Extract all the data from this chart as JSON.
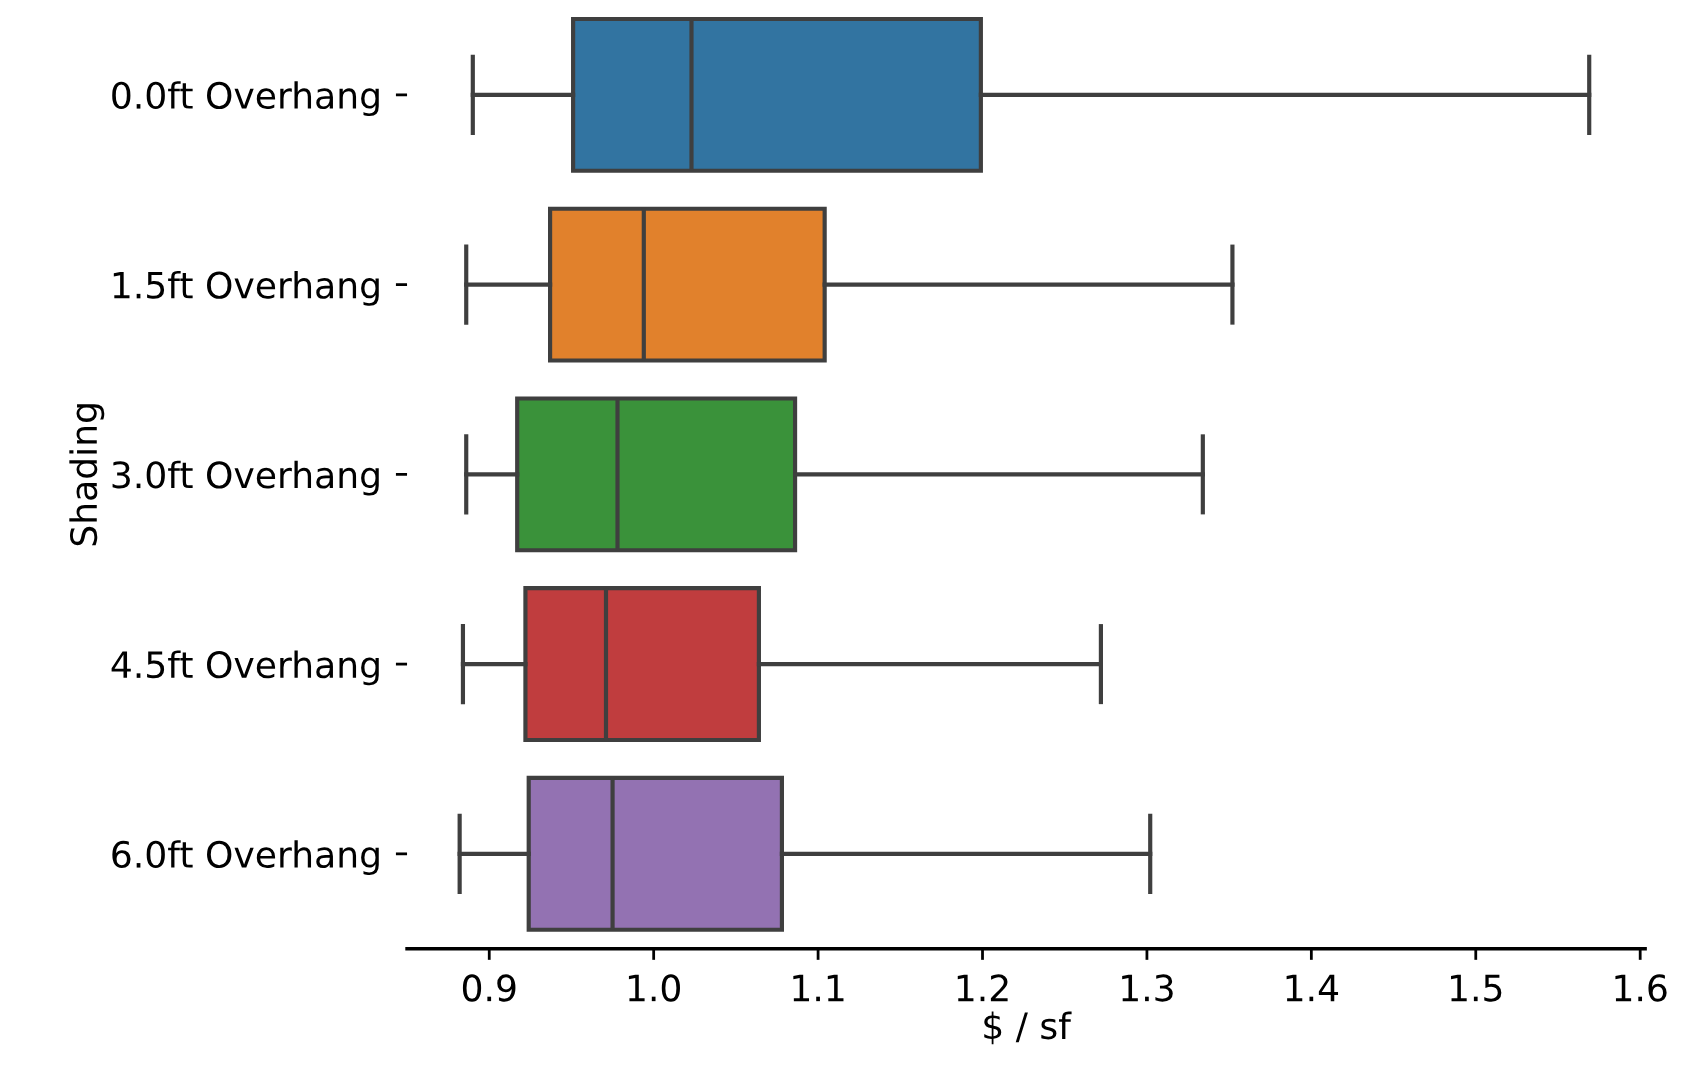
{
  "chart_data": {
    "type": "box",
    "orientation": "horizontal",
    "xlabel": "$ / sf",
    "ylabel": "Shading",
    "categories": [
      "0.0ft Overhang",
      "1.5ft Overhang",
      "3.0ft Overhang",
      "4.5ft Overhang",
      "6.0ft Overhang"
    ],
    "colors": [
      "#3274a1",
      "#e1812c",
      "#3a923a",
      "#c03d3e",
      "#9372b2"
    ],
    "boxes": [
      {
        "low": 0.89,
        "q1": 0.951,
        "median": 1.023,
        "q3": 1.199,
        "high": 1.569
      },
      {
        "low": 0.886,
        "q1": 0.937,
        "median": 0.994,
        "q3": 1.104,
        "high": 1.352
      },
      {
        "low": 0.886,
        "q1": 0.917,
        "median": 0.978,
        "q3": 1.086,
        "high": 1.334
      },
      {
        "low": 0.884,
        "q1": 0.922,
        "median": 0.971,
        "q3": 1.064,
        "high": 1.272
      },
      {
        "low": 0.882,
        "q1": 0.924,
        "median": 0.975,
        "q3": 1.078,
        "high": 1.302
      }
    ],
    "xlim": [
      0.85,
      1.603
    ],
    "xticks": [
      0.9,
      {
        "value": 1.0,
        "label": "1.0"
      },
      1.1,
      1.2,
      1.3,
      1.4,
      1.5,
      1.6
    ],
    "grid": false,
    "legend": false
  }
}
